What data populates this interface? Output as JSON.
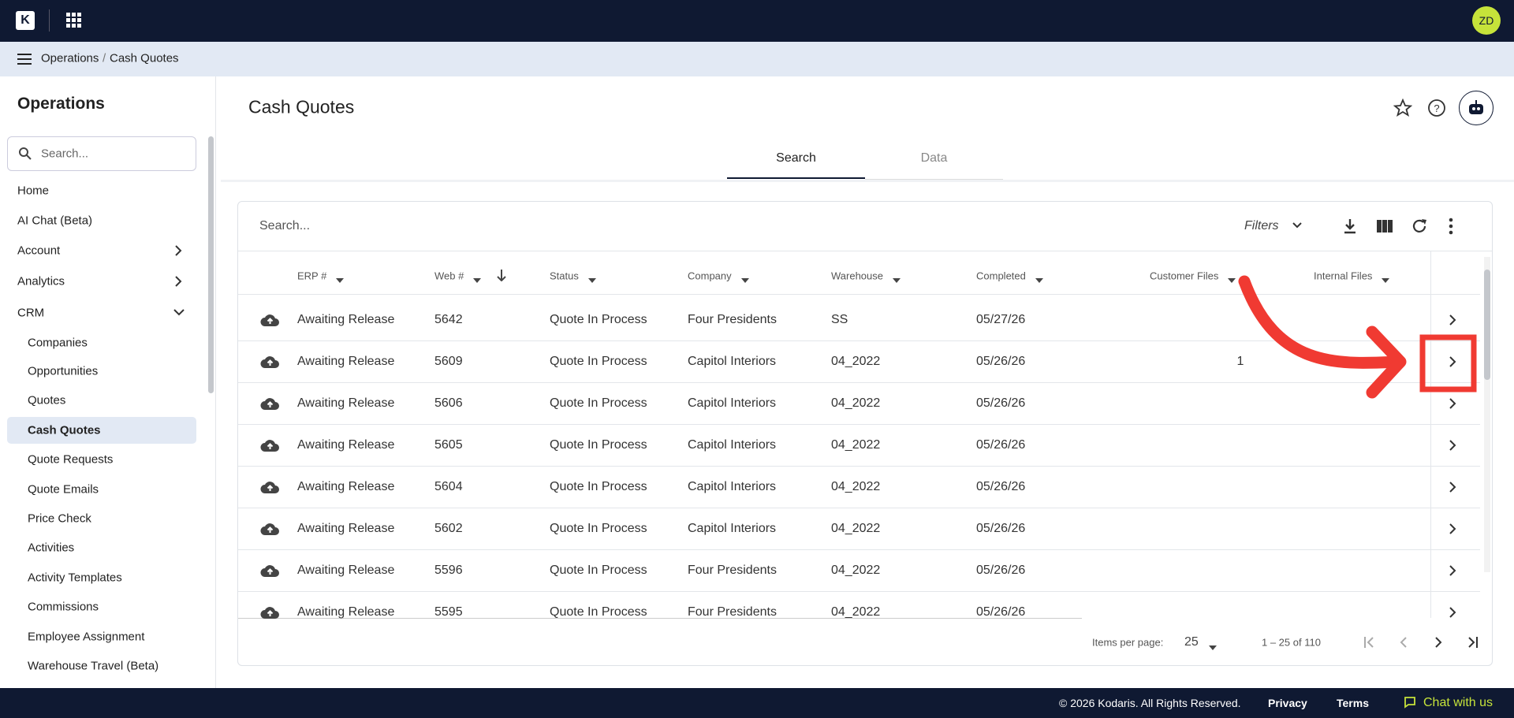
{
  "header": {
    "logo": "K",
    "avatar": "ZD"
  },
  "breadcrumb": [
    "Operations",
    "Cash Quotes"
  ],
  "sidebar": {
    "title": "Operations",
    "search_placeholder": "Search...",
    "items": [
      {
        "label": "Home"
      },
      {
        "label": "AI Chat (Beta)"
      },
      {
        "label": "Account",
        "chevron": "right"
      },
      {
        "label": "Analytics",
        "chevron": "right"
      },
      {
        "label": "CRM",
        "chevron": "down"
      },
      {
        "label": "Companies",
        "sub": true
      },
      {
        "label": "Opportunities",
        "sub": true
      },
      {
        "label": "Quotes",
        "sub": true
      },
      {
        "label": "Cash Quotes",
        "sub": true,
        "active": true
      },
      {
        "label": "Quote Requests",
        "sub": true
      },
      {
        "label": "Quote Emails",
        "sub": true
      },
      {
        "label": "Price Check",
        "sub": true
      },
      {
        "label": "Activities",
        "sub": true
      },
      {
        "label": "Activity Templates",
        "sub": true
      },
      {
        "label": "Commissions",
        "sub": true
      },
      {
        "label": "Employee Assignment",
        "sub": true
      },
      {
        "label": "Warehouse Travel (Beta)",
        "sub": true
      }
    ]
  },
  "page": {
    "title": "Cash Quotes",
    "tabs": [
      "Search",
      "Data"
    ],
    "active_tab": 0
  },
  "table": {
    "search_placeholder": "Search...",
    "filters": "Filters",
    "columns": [
      "ERP #",
      "Web #",
      "Status",
      "Company",
      "Warehouse",
      "Completed",
      "Customer Files",
      "Internal Files"
    ],
    "rows": [
      [
        "Awaiting Release",
        "5642",
        "Quote In Process",
        "Four Presidents",
        "SS",
        "05/27/26",
        null,
        null
      ],
      [
        "Awaiting Release",
        "5609",
        "Quote In Process",
        "Capitol Interiors",
        "04_2022",
        "05/26/26",
        "1",
        null
      ],
      [
        "Awaiting Release",
        "5606",
        "Quote In Process",
        "Capitol Interiors",
        "04_2022",
        "05/26/26",
        null,
        null
      ],
      [
        "Awaiting Release",
        "5605",
        "Quote In Process",
        "Capitol Interiors",
        "04_2022",
        "05/26/26",
        null,
        null
      ],
      [
        "Awaiting Release",
        "5604",
        "Quote In Process",
        "Capitol Interiors",
        "04_2022",
        "05/26/26",
        null,
        null
      ],
      [
        "Awaiting Release",
        "5602",
        "Quote In Process",
        "Capitol Interiors",
        "04_2022",
        "05/26/26",
        null,
        null
      ],
      [
        "Awaiting Release",
        "5596",
        "Quote In Process",
        "Four Presidents",
        "04_2022",
        "05/26/26",
        null,
        null
      ],
      [
        "Awaiting Release",
        "5595",
        "Quote In Process",
        "Four Presidents",
        "04_2022",
        "05/26/26",
        null,
        null
      ]
    ],
    "pagination": {
      "items_per_page_label": "Items per page:",
      "page_size": "25",
      "range": "1 – 25 of 110"
    }
  },
  "footer": {
    "copyright": "© 2026 Kodaris. All Rights Reserved.",
    "links": [
      "Privacy",
      "Terms"
    ],
    "chat": "Chat with us"
  }
}
